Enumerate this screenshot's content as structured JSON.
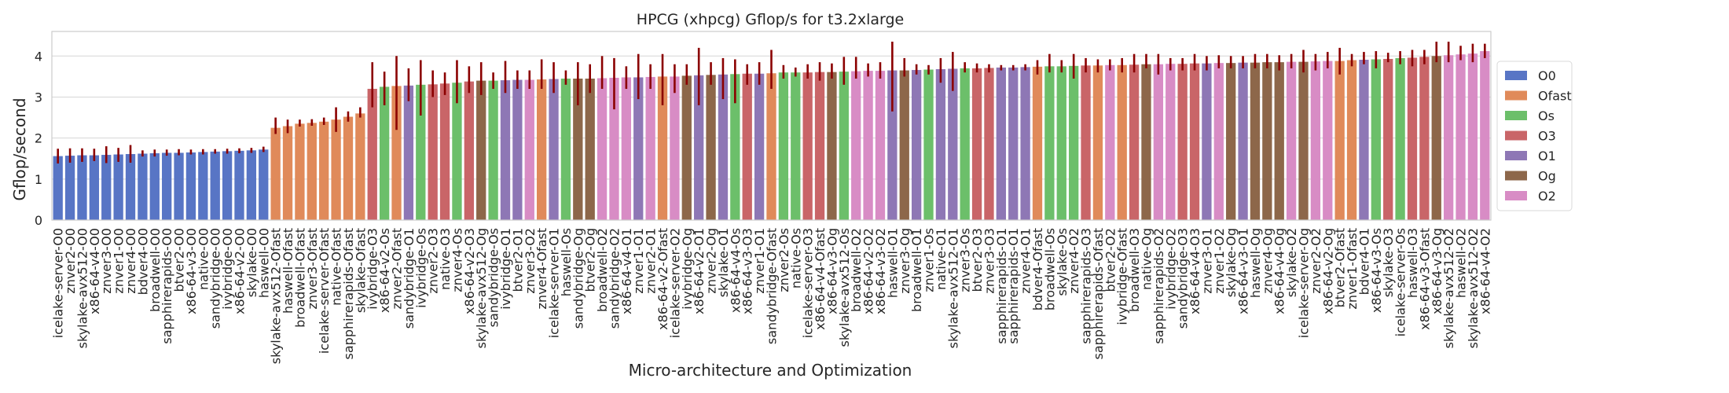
{
  "chart_data": {
    "type": "bar",
    "title": "HPCG (xhpcg) Gflop/s for t3.2xlarge",
    "xlabel": "Micro-architecture and Optimization",
    "ylabel": "Gflop/second",
    "ylim": [
      0,
      4.6
    ],
    "yticks": [
      0,
      1,
      2,
      3,
      4
    ],
    "grid": true,
    "legend_position": "right",
    "groups": [
      {
        "name": "O0",
        "color": "#5875c5"
      },
      {
        "name": "Ofast",
        "color": "#e08a5a"
      },
      {
        "name": "Os",
        "color": "#6cbf6a"
      },
      {
        "name": "O3",
        "color": "#c96568"
      },
      {
        "name": "O1",
        "color": "#8e77b5"
      },
      {
        "name": "Og",
        "color": "#8d674a"
      },
      {
        "name": "O2",
        "color": "#d88cc5"
      }
    ],
    "categories": [
      "icelake-server-O0",
      "znver2-O0",
      "skylake-avx512-O0",
      "x86-64-v4-O0",
      "znver3-O0",
      "znver1-O0",
      "znver4-O0",
      "bdver4-O0",
      "broadwell-O0",
      "sapphirerapids-O0",
      "btver2-O0",
      "x86-64-v3-O0",
      "native-O0",
      "sandybridge-O0",
      "ivybridge-O0",
      "x86-64-v2-O0",
      "skylake-O0",
      "haswell-O0",
      "skylake-avx512-Ofast",
      "haswell-Ofast",
      "broadwell-Ofast",
      "znver3-Ofast",
      "icelake-server-Ofast",
      "native-Ofast",
      "sapphirerapids-Ofast",
      "skylake-Ofast",
      "ivybridge-O3",
      "x86-64-v2-Os",
      "znver2-Ofast",
      "sandybridge-O1",
      "ivybridge-Os",
      "znver2-O3",
      "native-O3",
      "znver4-Os",
      "x86-64-v2-O3",
      "skylake-avx512-Og",
      "sandybridge-Os",
      "ivybridge-O1",
      "btver2-O1",
      "znver3-O2",
      "znver4-Ofast",
      "icelake-server-O1",
      "haswell-Os",
      "sandybridge-Og",
      "btver2-Og",
      "broadwell-O2",
      "sandybridge-O2",
      "x86-64-v4-O1",
      "znver1-O1",
      "znver2-O1",
      "x86-64-v2-Ofast",
      "icelake-server-O2",
      "ivybridge-Og",
      "x86-64-v2-O1",
      "znver2-Og",
      "skylake-O1",
      "x86-64-v4-Os",
      "x86-64-v3-O3",
      "znver1-O1",
      "sandybridge-Ofast",
      "znver2-Os",
      "native-Os",
      "icelake-server-O3",
      "x86-64-v4-Ofast",
      "x86-64-v3-Og",
      "skylake-avx512-Os",
      "broadwell-O2",
      "x86-64-v2-O2",
      "x86-64-v3-O2",
      "haswell-O1",
      "znver3-Og",
      "broadwell-O1",
      "znver1-Os",
      "native-O1",
      "skylake-avx512-O1",
      "znver3-Os",
      "btver2-O3",
      "znver3-O3",
      "sapphirerapids-O1",
      "sapphirerapids-O1",
      "znver4-O1",
      "bdver4-Ofast",
      "broadwell-Os",
      "skylake-Os",
      "znver4-O2",
      "sapphirerapids-O3",
      "sapphirerapids-Ofast",
      "btver2-O2",
      "ivybridge-Ofast",
      "broadwell-O3",
      "native-Og",
      "sapphirerapids-O2",
      "ivybridge-O2",
      "sandybridge-O3",
      "x86-64-v4-O3",
      "znver3-O1",
      "znver1-O2",
      "skylake-Og",
      "x86-64-v3-O1",
      "haswell-Og",
      "znver4-Og",
      "x86-64-v4-Og",
      "skylake-O2",
      "icelake-server-Og",
      "znver2-O2",
      "x86-64-v2-Og",
      "btver2-Ofast",
      "znver1-Ofast",
      "bdver4-O1",
      "x86-64-v3-Os",
      "skylake-O3",
      "icelake-server-Os",
      "haswell-O3",
      "x86-64-v3-Ofast",
      "x86-64-v3-Og",
      "skylake-avx512-O2",
      "haswell-O2",
      "skylake-avx512-O2",
      "x86-64-v4-O2"
    ],
    "group_index": [
      0,
      0,
      0,
      0,
      0,
      0,
      0,
      0,
      0,
      0,
      0,
      0,
      0,
      0,
      0,
      0,
      0,
      0,
      1,
      1,
      1,
      1,
      1,
      1,
      1,
      1,
      3,
      2,
      1,
      4,
      2,
      3,
      3,
      2,
      3,
      5,
      2,
      4,
      4,
      6,
      1,
      4,
      2,
      5,
      5,
      6,
      6,
      6,
      4,
      6,
      1,
      6,
      5,
      4,
      5,
      4,
      2,
      3,
      4,
      1,
      2,
      2,
      3,
      3,
      5,
      2,
      6,
      6,
      6,
      4,
      5,
      4,
      2,
      4,
      4,
      2,
      3,
      3,
      4,
      4,
      4,
      1,
      2,
      2,
      2,
      3,
      1,
      6,
      1,
      3,
      5,
      6,
      6,
      3,
      3,
      4,
      6,
      5,
      4,
      5,
      5,
      5,
      6,
      5,
      6,
      6,
      1,
      1,
      4,
      2,
      3,
      2,
      3,
      3,
      5,
      6,
      6,
      6,
      6
    ],
    "values": [
      1.56,
      1.57,
      1.58,
      1.58,
      1.59,
      1.6,
      1.61,
      1.62,
      1.63,
      1.64,
      1.64,
      1.65,
      1.66,
      1.67,
      1.68,
      1.69,
      1.7,
      1.72,
      2.25,
      2.29,
      2.35,
      2.37,
      2.4,
      2.45,
      2.52,
      2.6,
      3.2,
      3.25,
      3.27,
      3.28,
      3.3,
      3.31,
      3.33,
      3.35,
      3.38,
      3.4,
      3.4,
      3.41,
      3.42,
      3.42,
      3.43,
      3.44,
      3.45,
      3.45,
      3.45,
      3.46,
      3.47,
      3.48,
      3.48,
      3.49,
      3.5,
      3.5,
      3.52,
      3.53,
      3.54,
      3.55,
      3.56,
      3.57,
      3.57,
      3.58,
      3.6,
      3.6,
      3.6,
      3.61,
      3.61,
      3.62,
      3.63,
      3.64,
      3.64,
      3.65,
      3.65,
      3.66,
      3.67,
      3.68,
      3.69,
      3.7,
      3.7,
      3.71,
      3.72,
      3.72,
      3.73,
      3.74,
      3.75,
      3.75,
      3.76,
      3.77,
      3.77,
      3.78,
      3.78,
      3.79,
      3.8,
      3.8,
      3.81,
      3.81,
      3.82,
      3.82,
      3.83,
      3.83,
      3.84,
      3.84,
      3.85,
      3.85,
      3.86,
      3.86,
      3.87,
      3.88,
      3.88,
      3.9,
      3.91,
      3.92,
      3.93,
      3.95,
      3.96,
      3.98,
      4.0,
      4.02,
      4.04,
      4.06,
      4.12
    ],
    "err_low": [
      1.38,
      1.4,
      1.42,
      1.44,
      1.39,
      1.42,
      1.4,
      1.55,
      1.55,
      1.57,
      1.58,
      1.6,
      1.6,
      1.62,
      1.62,
      1.63,
      1.64,
      1.66,
      2.1,
      2.12,
      2.28,
      2.3,
      2.32,
      2.15,
      2.4,
      2.5,
      2.75,
      2.8,
      2.2,
      2.9,
      2.55,
      3.0,
      3.05,
      2.85,
      3.1,
      3.05,
      3.2,
      3.1,
      3.2,
      3.2,
      3.2,
      3.1,
      3.3,
      2.8,
      3.1,
      3.2,
      2.7,
      3.2,
      2.95,
      3.2,
      2.8,
      3.1,
      3.3,
      2.8,
      3.3,
      2.95,
      2.85,
      3.3,
      3.3,
      3.2,
      3.45,
      3.5,
      3.45,
      3.4,
      3.45,
      3.3,
      3.45,
      3.5,
      3.45,
      2.65,
      3.5,
      3.55,
      3.55,
      3.35,
      3.15,
      3.6,
      3.6,
      3.6,
      3.65,
      3.65,
      3.65,
      3.55,
      3.6,
      3.6,
      3.45,
      3.6,
      3.6,
      3.65,
      3.6,
      3.6,
      3.7,
      3.55,
      3.65,
      3.65,
      3.65,
      3.65,
      3.7,
      3.7,
      3.7,
      3.7,
      3.7,
      3.65,
      3.7,
      3.6,
      3.65,
      3.7,
      3.55,
      3.75,
      3.8,
      3.7,
      3.85,
      3.8,
      3.75,
      3.8,
      3.85,
      3.85,
      3.9,
      3.85,
      3.95
    ],
    "err_high": [
      1.74,
      1.75,
      1.75,
      1.74,
      1.8,
      1.76,
      1.83,
      1.7,
      1.72,
      1.72,
      1.73,
      1.72,
      1.73,
      1.73,
      1.74,
      1.75,
      1.76,
      1.79,
      2.5,
      2.45,
      2.45,
      2.46,
      2.5,
      2.75,
      2.65,
      2.75,
      3.85,
      3.62,
      4.0,
      3.7,
      3.9,
      3.65,
      3.6,
      3.9,
      3.75,
      3.85,
      3.6,
      3.88,
      3.65,
      3.65,
      3.92,
      3.85,
      3.65,
      3.85,
      3.8,
      4.0,
      3.95,
      3.75,
      4.05,
      3.8,
      4.05,
      3.8,
      3.8,
      4.2,
      3.85,
      3.95,
      3.92,
      3.8,
      3.85,
      4.15,
      3.78,
      3.72,
      3.8,
      3.85,
      3.82,
      3.98,
      3.98,
      3.82,
      3.85,
      4.35,
      3.95,
      3.8,
      3.78,
      3.95,
      4.1,
      3.85,
      3.82,
      3.8,
      3.78,
      3.78,
      3.8,
      3.9,
      4.05,
      3.9,
      4.05,
      3.95,
      3.92,
      3.92,
      3.95,
      4.05,
      4.05,
      4.05,
      3.95,
      3.95,
      4.05,
      4.0,
      4.02,
      4.0,
      4.0,
      4.05,
      4.05,
      4.02,
      4.05,
      4.15,
      4.05,
      4.1,
      4.2,
      4.05,
      4.1,
      4.12,
      4.08,
      4.12,
      4.15,
      4.15,
      4.35,
      4.35,
      4.25,
      4.3,
      4.3
    ]
  }
}
